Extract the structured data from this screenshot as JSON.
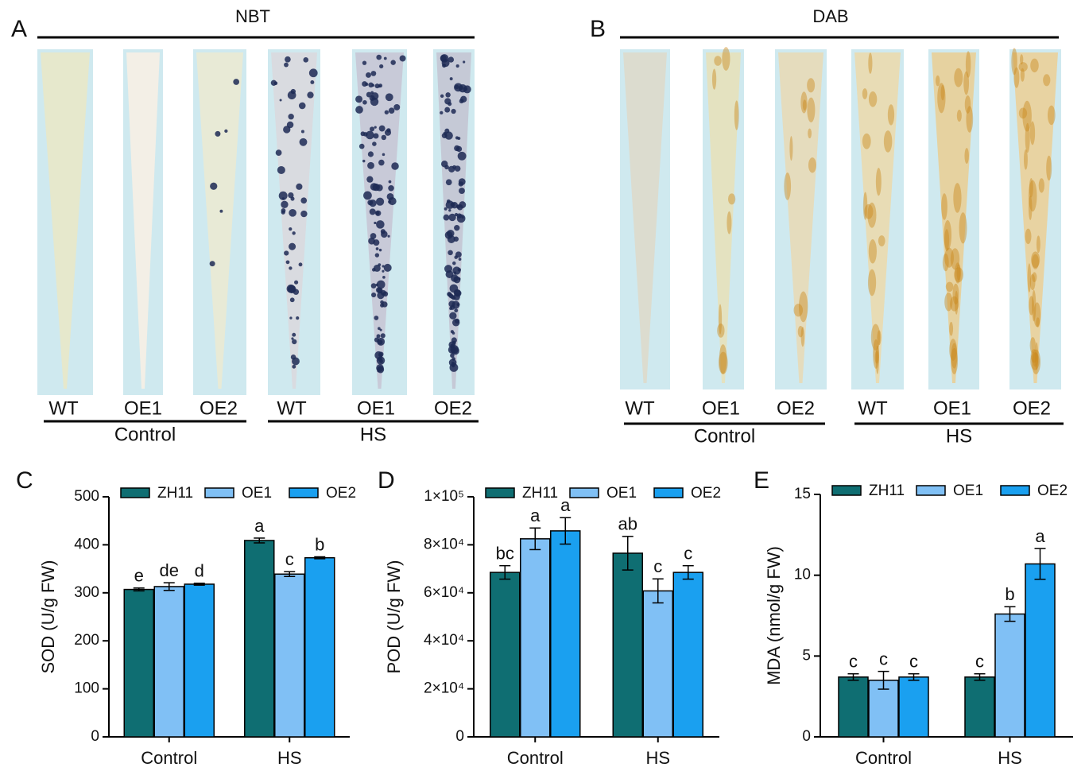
{
  "panel_a": {
    "label": "A",
    "stain": "NBT",
    "samples": [
      "WT",
      "OE1",
      "OE2",
      "WT",
      "OE1",
      "OE2"
    ],
    "groups": [
      "Control",
      "HS"
    ]
  },
  "panel_b": {
    "label": "B",
    "stain": "DAB",
    "samples": [
      "WT",
      "OE1",
      "OE2",
      "WT",
      "OE1",
      "OE2"
    ],
    "groups": [
      "Control",
      "HS"
    ]
  },
  "chart_data": [
    {
      "type": "bar",
      "panel": "C",
      "y_label": "SOD (U/g FW)",
      "categories": [
        "Control",
        "HS"
      ],
      "ylim": [
        0,
        500
      ],
      "yticks": [
        0,
        100,
        200,
        300,
        400,
        500
      ],
      "series": [
        {
          "name": "ZH11",
          "color": "#0f6e72",
          "values": [
            307,
            409
          ],
          "errors": [
            3,
            5
          ],
          "letters": [
            "e",
            "a"
          ]
        },
        {
          "name": "OE1",
          "color": "#80c0f5",
          "values": [
            313,
            339
          ],
          "errors": [
            8,
            5
          ],
          "letters": [
            "de",
            "c"
          ]
        },
        {
          "name": "OE2",
          "color": "#1aa0f0",
          "values": [
            318,
            373
          ],
          "errors": [
            2,
            2
          ],
          "letters": [
            "d",
            "b"
          ]
        }
      ]
    },
    {
      "type": "bar",
      "panel": "D",
      "y_label": "POD (U/g FW)",
      "categories": [
        "Control",
        "HS"
      ],
      "ylim": [
        0,
        100000
      ],
      "yticks": [
        0,
        {
          "value": 20000,
          "label": "2×10⁴"
        },
        {
          "value": 40000,
          "label": "4×10⁴"
        },
        {
          "value": 60000,
          "label": "6×10⁴"
        },
        {
          "value": 80000,
          "label": "8×10⁴"
        },
        {
          "value": 100000,
          "label": "1×10⁵"
        }
      ],
      "series": [
        {
          "name": "ZH11",
          "color": "#0f6e72",
          "values": [
            68500,
            76500
          ],
          "errors": [
            2800,
            7000
          ],
          "letters": [
            "bc",
            "ab"
          ]
        },
        {
          "name": "OE1",
          "color": "#80c0f5",
          "values": [
            82500,
            60800
          ],
          "errors": [
            4500,
            5000
          ],
          "letters": [
            "a",
            "c"
          ]
        },
        {
          "name": "OE2",
          "color": "#1aa0f0",
          "values": [
            85800,
            68500
          ],
          "errors": [
            5500,
            2800
          ],
          "letters": [
            "a",
            "c"
          ]
        }
      ]
    },
    {
      "type": "bar",
      "panel": "E",
      "y_label": "MDA (nmol/g FW)",
      "categories": [
        "Control",
        "HS"
      ],
      "ylim": [
        0,
        15
      ],
      "yticks": [
        0,
        5,
        10,
        15
      ],
      "series": [
        {
          "name": "ZH11",
          "color": "#0f6e72",
          "values": [
            3.7,
            3.7
          ],
          "errors": [
            0.2,
            0.2
          ],
          "letters": [
            "c",
            "c"
          ]
        },
        {
          "name": "OE1",
          "color": "#80c0f5",
          "values": [
            3.5,
            7.6
          ],
          "errors": [
            0.55,
            0.45
          ],
          "letters": [
            "c",
            "b"
          ]
        },
        {
          "name": "OE2",
          "color": "#1aa0f0",
          "values": [
            3.7,
            10.7
          ],
          "errors": [
            0.2,
            0.95
          ],
          "letters": [
            "c",
            "a"
          ]
        }
      ]
    }
  ]
}
